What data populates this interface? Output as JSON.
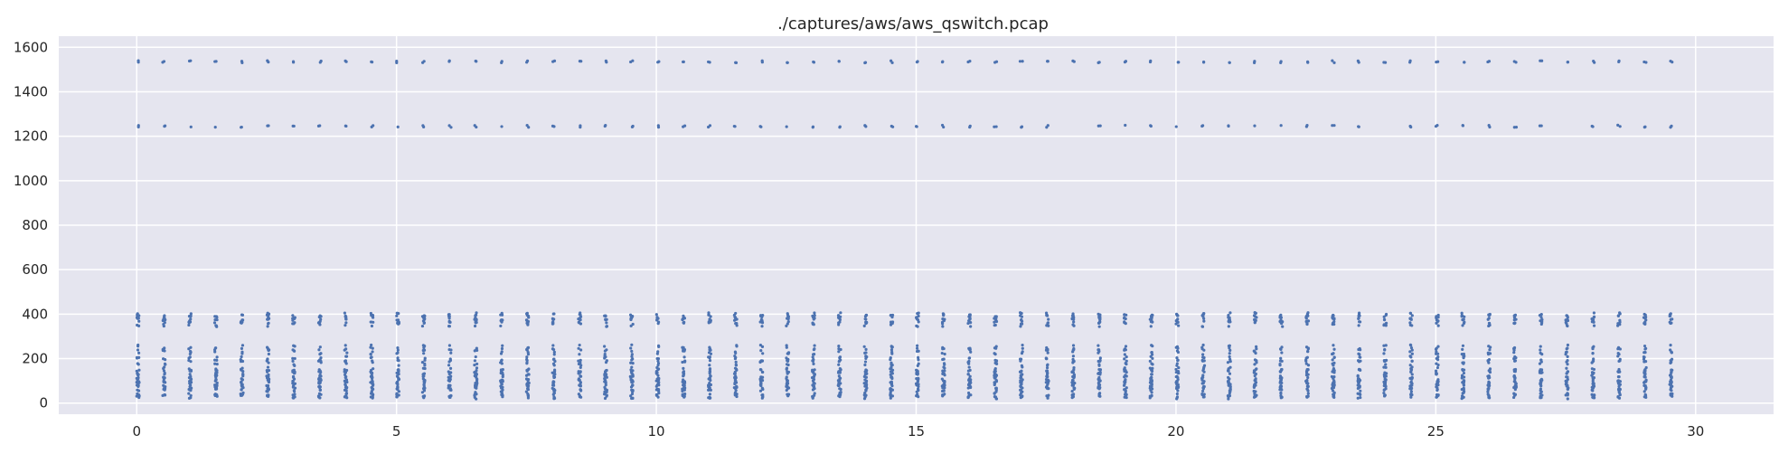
{
  "chart_data": {
    "type": "scatter",
    "title": "./captures/aws/aws_qswitch.pcap",
    "xlabel": "",
    "ylabel": "",
    "xlim": [
      -1.5,
      31.5
    ],
    "ylim": [
      -50,
      1650
    ],
    "xticks": [
      0,
      5,
      10,
      15,
      20,
      25,
      30
    ],
    "yticks": [
      0,
      200,
      400,
      600,
      800,
      1000,
      1200,
      1400,
      1600
    ],
    "grid": true,
    "legend": "none",
    "background_color": "#e5e5ef",
    "grid_color": "#ffffff",
    "marker_color": "#4c72b0",
    "series": [
      {
        "burst_times": [
          0,
          0.5,
          1,
          1.5,
          2,
          2.5,
          3,
          3.5,
          4,
          4.5,
          5,
          5.5,
          6,
          6.5,
          7,
          7.5,
          8,
          8.5,
          9,
          9.5,
          10,
          10.5,
          11,
          11.5,
          12,
          12.5,
          13,
          13.5,
          14,
          14.5,
          15,
          15.5,
          16,
          16.5,
          17,
          17.5,
          18,
          18.5,
          19,
          19.5,
          20,
          20.5,
          21,
          21.5,
          22,
          22.5,
          23,
          23.5,
          24,
          24.5,
          25,
          25.5,
          26,
          26.5,
          27,
          27.5,
          28,
          28.5,
          29,
          29.5
        ],
        "packet_sizes": [
          1535,
          1245,
          395,
          385,
          370,
          355,
          250,
          230,
          200,
          180,
          150,
          140,
          125,
          110,
          100,
          90,
          85,
          70,
          60,
          35,
          30
        ]
      }
    ]
  }
}
